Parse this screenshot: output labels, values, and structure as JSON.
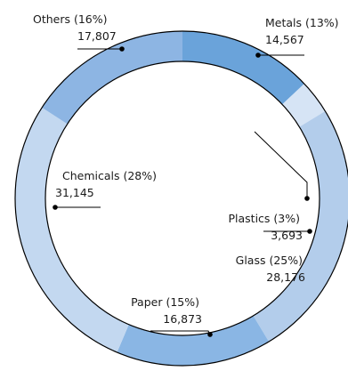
{
  "chart_data": {
    "type": "pie",
    "variant": "donut",
    "slices": [
      {
        "name": "Metals",
        "percent_label": "13%",
        "value": 14567,
        "value_label": "14,567",
        "color": "#6aa3da"
      },
      {
        "name": "Plastics",
        "percent_label": "3%",
        "value": 3693,
        "value_label": "3,693",
        "color": "#d6e4f5"
      },
      {
        "name": "Glass",
        "percent_label": "25%",
        "value": 28176,
        "value_label": "28,176",
        "color": "#b3cdeb"
      },
      {
        "name": "Paper",
        "percent_label": "15%",
        "value": 16873,
        "value_label": "16,873",
        "color": "#8ab6e4"
      },
      {
        "name": "Chemicals",
        "percent_label": "28%",
        "value": 31145,
        "value_label": "31,145",
        "color": "#c3d8f0"
      },
      {
        "name": "Others",
        "percent_label": "16%",
        "value": 17807,
        "value_label": "17,807",
        "color": "#8db5e3"
      }
    ],
    "start_angle_deg": 0,
    "direction": "clockwise",
    "outline_color": "#000000"
  }
}
